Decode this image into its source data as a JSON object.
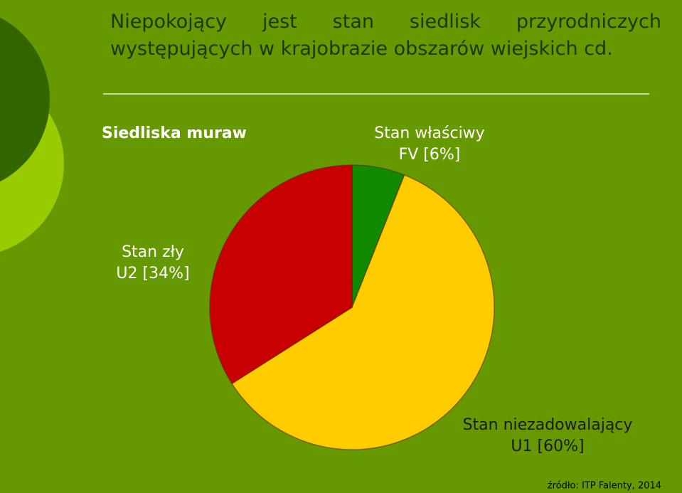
{
  "title": "Niepokojący jest stan siedlisk przyrodniczych występujących w krajobrazie obszarów wiejskich cd.",
  "source": "źródło: ITP Falenty, 2014",
  "chart_data": {
    "type": "pie",
    "title": "Siedliska muraw",
    "categories": [
      "Stan właściwy",
      "Stan niezadowalający",
      "Stan zły"
    ],
    "values": [
      6,
      60,
      34
    ],
    "value_labels": [
      "FV [6%]",
      "U1 [60%]",
      "U2 [34%]"
    ],
    "colors": [
      "#118a00",
      "#ffcc00",
      "#c80000"
    ]
  }
}
